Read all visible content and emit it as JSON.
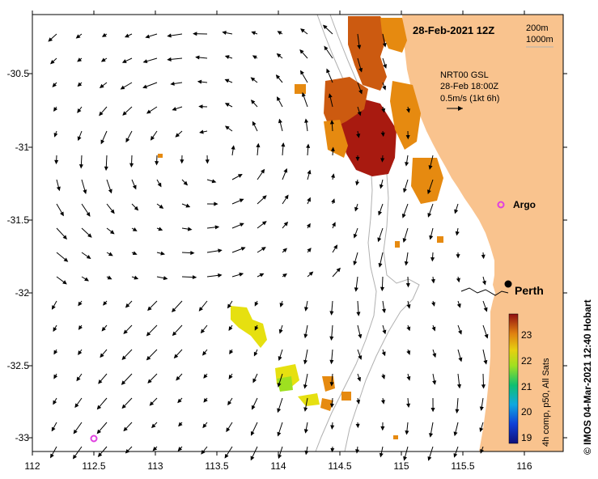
{
  "map": {
    "date_title": "28-Feb-2021 12Z",
    "bathymetry_legend": [
      "200m",
      "1000m"
    ],
    "current_info": {
      "line1": "NRT00 GSL",
      "line2": "28-Feb 18:00Z",
      "line3": "0.5m/s (1kt 6h)"
    },
    "places": [
      {
        "name": "Perth",
        "lon": 115.86,
        "lat": -31.95
      },
      {
        "name": "Argo",
        "lon": 115.78,
        "lat": -31.41
      }
    ],
    "argo_extra": {
      "lon": 112.5,
      "lat": -33.02
    },
    "lon_ticks": [
      "112",
      "112.5",
      "113",
      "113.5",
      "114",
      "114.5",
      "115",
      "115.5",
      "116"
    ],
    "lat_ticks": [
      "-30.5",
      "-31",
      "-31.5",
      "-32",
      "-32.5",
      "-33"
    ],
    "colorbar": {
      "ticks": [
        "23",
        "22",
        "21",
        "20",
        "19"
      ],
      "label": "4h comp, p50, All Sats"
    },
    "credit": "© IMOS 04-Mar-2021 12:40 Hobart",
    "colors": {
      "land": "#f9c38e",
      "argo": "#e040e0",
      "sst_hot": "#a81a10",
      "sst_warm": "#cc5a10",
      "sst_orange": "#e68a10",
      "sst_yellow": "#e6e010",
      "sst_green": "#9ee020",
      "bathymetry": "#b0b0b0"
    }
  }
}
